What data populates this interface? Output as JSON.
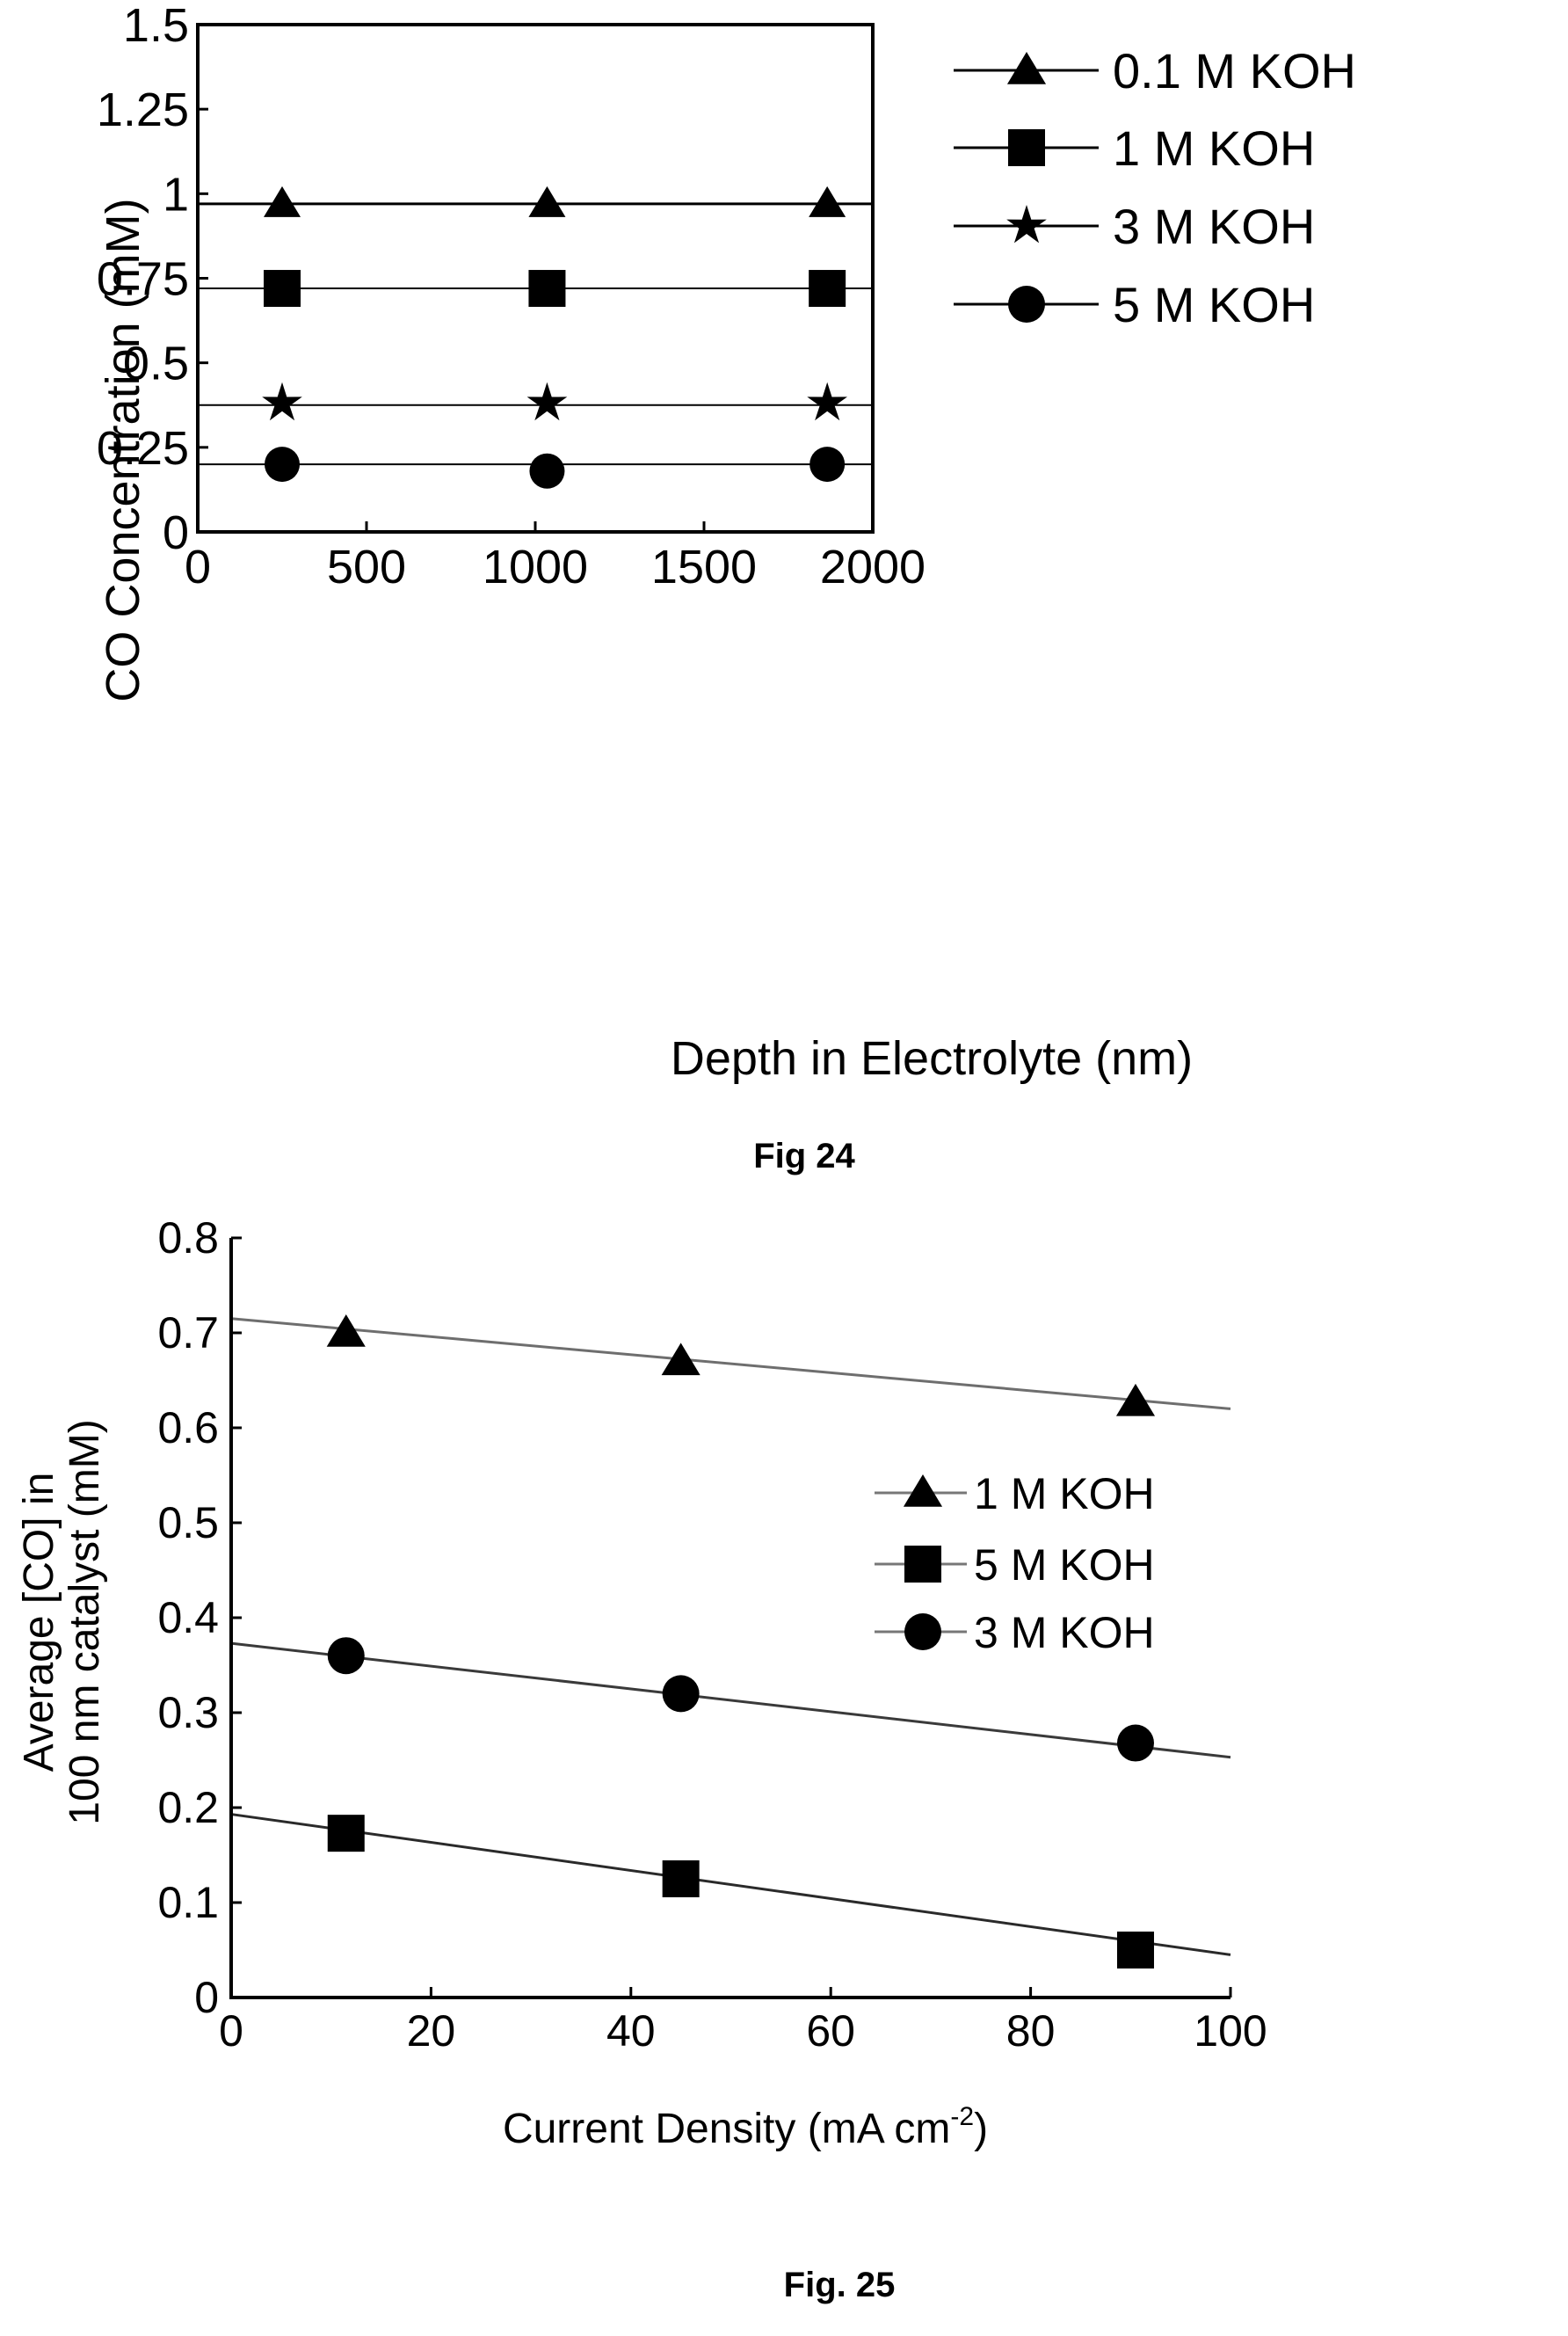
{
  "chart_data": [
    {
      "type": "scatter",
      "caption": "Fig 24",
      "xlabel": "Depth in Electrolyte (nm)",
      "ylabel": "CO Concentration (mM)",
      "xlim": [
        0,
        2000
      ],
      "ylim": [
        0,
        1.5
      ],
      "xticks": [
        "0",
        "500",
        "1000",
        "1500",
        "2000"
      ],
      "yticks": [
        "0",
        "0.25",
        "0.5",
        "0.75",
        "1",
        "1.25",
        "1.5"
      ],
      "legend_position": "top-right",
      "series": [
        {
          "name": "0.1 M KOH",
          "marker": "triangle",
          "fit": [
            0.97,
            0.97
          ],
          "x": [
            250,
            1035,
            1865
          ],
          "y": [
            0.97,
            0.97,
            0.97
          ]
        },
        {
          "name": "1 M KOH",
          "marker": "square",
          "fit": [
            0.72,
            0.72
          ],
          "x": [
            250,
            1035,
            1865
          ],
          "y": [
            0.72,
            0.72,
            0.72
          ]
        },
        {
          "name": "3 M KOH",
          "marker": "star",
          "fit": [
            0.375,
            0.375
          ],
          "x": [
            250,
            1035,
            1865
          ],
          "y": [
            0.38,
            0.38,
            0.38
          ]
        },
        {
          "name": "5 M KOH",
          "marker": "circle",
          "fit": [
            0.2,
            0.2
          ],
          "x": [
            250,
            1035,
            1865
          ],
          "y": [
            0.2,
            0.18,
            0.2
          ]
        }
      ]
    },
    {
      "type": "scatter",
      "caption": "Fig. 25",
      "xlabel_main": "Current Density (mA cm",
      "xlabel_sup": "-2",
      "xlabel_end": ")",
      "ylabel_lines": [
        "Average [CO] in",
        "100 nm catalyst (mM)"
      ],
      "xlim": [
        0,
        100
      ],
      "ylim": [
        0,
        0.8
      ],
      "xticks": [
        "0",
        "20",
        "40",
        "60",
        "80",
        "100"
      ],
      "yticks": [
        "0",
        "0.1",
        "0.2",
        "0.3",
        "0.4",
        "0.5",
        "0.6",
        "0.7",
        "0.8"
      ],
      "legend_position": "right",
      "series": [
        {
          "name": "1 M KOH",
          "marker": "triangle",
          "fit": [
            0.715,
            0.62
          ],
          "x": [
            11.5,
            45,
            90.5
          ],
          "y": [
            0.7,
            0.67,
            0.627
          ]
        },
        {
          "name": "5 M KOH",
          "marker": "square",
          "fit": [
            0.193,
            0.045
          ],
          "x": [
            11.5,
            45,
            90.5
          ],
          "y": [
            0.173,
            0.125,
            0.05
          ]
        },
        {
          "name": "3 M KOH",
          "marker": "circle",
          "fit": [
            0.373,
            0.253
          ],
          "x": [
            11.5,
            45,
            90.5
          ],
          "y": [
            0.36,
            0.32,
            0.268
          ]
        }
      ]
    }
  ]
}
